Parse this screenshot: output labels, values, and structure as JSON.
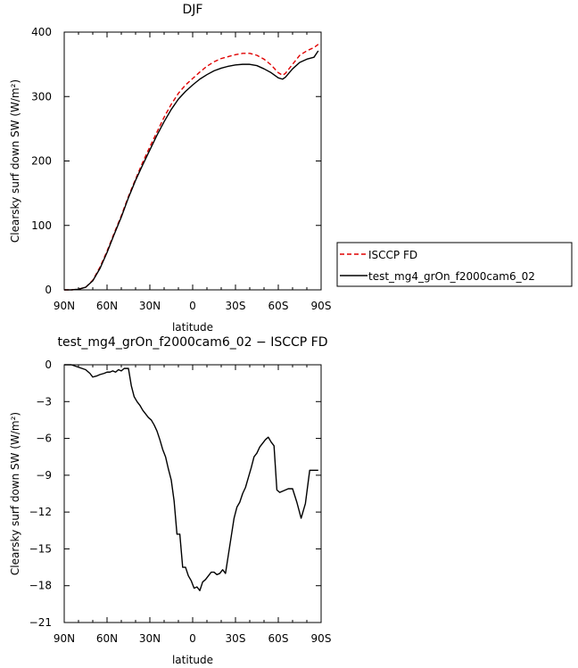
{
  "chart_data": [
    {
      "type": "line",
      "title": "DJF",
      "xlabel": "latitude",
      "ylabel": "Clearsky surf down SW (W/m²)",
      "xlim": [
        90,
        -90
      ],
      "ylim": [
        0,
        400
      ],
      "x_tick_labels": [
        "90N",
        "60N",
        "30N",
        "0",
        "30S",
        "60S",
        "90S"
      ],
      "y_tick_labels": [
        "0",
        "100",
        "200",
        "300",
        "400"
      ],
      "legend_position": "right",
      "series": [
        {
          "name": "ISCCP FD",
          "color": "#e00000",
          "dash": "dashed",
          "x": [
            90,
            85,
            80,
            75,
            70,
            65,
            60,
            55,
            50,
            45,
            40,
            35,
            30,
            25,
            20,
            15,
            10,
            5,
            0,
            -5,
            -10,
            -15,
            -20,
            -25,
            -30,
            -35,
            -40,
            -45,
            -50,
            -55,
            -60,
            -63,
            -65,
            -70,
            -75,
            -80,
            -85,
            -88
          ],
          "y": [
            0,
            0,
            1,
            4,
            15,
            35,
            60,
            88,
            115,
            145,
            172,
            198,
            222,
            245,
            268,
            288,
            305,
            318,
            328,
            338,
            347,
            354,
            359,
            362,
            365,
            367,
            367,
            364,
            358,
            349,
            337,
            333,
            336,
            350,
            364,
            371,
            376,
            381
          ]
        },
        {
          "name": "test_mg4_grOn_f2000cam6_02",
          "color": "#000000",
          "dash": "solid",
          "x": [
            90,
            85,
            80,
            75,
            70,
            65,
            60,
            55,
            50,
            45,
            40,
            35,
            30,
            25,
            20,
            15,
            10,
            5,
            0,
            -5,
            -10,
            -15,
            -20,
            -25,
            -30,
            -35,
            -40,
            -45,
            -50,
            -55,
            -60,
            -63,
            -65,
            -70,
            -75,
            -80,
            -85,
            -88
          ],
          "y": [
            0,
            0,
            1,
            4,
            14,
            33,
            58,
            86,
            113,
            143,
            170,
            194,
            217,
            240,
            261,
            280,
            296,
            308,
            318,
            327,
            334,
            340,
            344,
            347,
            349,
            350,
            350,
            348,
            343,
            337,
            329,
            327,
            330,
            343,
            353,
            358,
            361,
            371
          ]
        }
      ]
    },
    {
      "type": "line",
      "title": "test_mg4_grOn_f2000cam6_02 − ISCCP FD",
      "xlabel": "latitude",
      "ylabel": "Clearsky surf down SW (W/m²)",
      "xlim": [
        90,
        -90
      ],
      "ylim": [
        -21,
        0
      ],
      "x_tick_labels": [
        "90N",
        "60N",
        "30N",
        "0",
        "30S",
        "60S",
        "90S"
      ],
      "y_tick_labels": [
        "0",
        "−3",
        "−6",
        "−9",
        "−12",
        "−15",
        "−18",
        "−21"
      ],
      "series": [
        {
          "name": "",
          "color": "#000000",
          "dash": "solid",
          "x": [
            90,
            85,
            80,
            75,
            72,
            70,
            67,
            65,
            62,
            60,
            58,
            56,
            54,
            52,
            50,
            48,
            46,
            45,
            43,
            41,
            39,
            37,
            35,
            33,
            31,
            29,
            27,
            25,
            23,
            21,
            19,
            17,
            15,
            13,
            11,
            9,
            7,
            5,
            3,
            1,
            0,
            -1,
            -3,
            -5,
            -7,
            -9,
            -11,
            -13,
            -15,
            -17,
            -19,
            -21,
            -23,
            -25,
            -27,
            -29,
            -31,
            -33,
            -35,
            -37,
            -39,
            -41,
            -43,
            -45,
            -47,
            -49,
            -51,
            -53,
            -55,
            -57,
            -59,
            -61,
            -63,
            -65,
            -67,
            -70,
            -73,
            -76,
            -79,
            -82,
            -85,
            -88
          ],
          "y": [
            0,
            0,
            -0.2,
            -0.4,
            -0.7,
            -1.0,
            -0.9,
            -0.8,
            -0.7,
            -0.6,
            -0.6,
            -0.5,
            -0.6,
            -0.4,
            -0.5,
            -0.3,
            -0.3,
            -0.3,
            -1.7,
            -2.6,
            -3.0,
            -3.3,
            -3.7,
            -4.0,
            -4.3,
            -4.5,
            -4.9,
            -5.4,
            -6.1,
            -6.9,
            -7.5,
            -8.5,
            -9.4,
            -11.1,
            -13.8,
            -13.8,
            -16.5,
            -16.5,
            -17.2,
            -17.6,
            -17.9,
            -18.2,
            -18.1,
            -18.4,
            -17.7,
            -17.5,
            -17.2,
            -16.9,
            -16.9,
            -17.1,
            -17.0,
            -16.7,
            -17.0,
            -15.5,
            -14.0,
            -12.5,
            -11.6,
            -11.2,
            -10.5,
            -10.0,
            -9.2,
            -8.4,
            -7.5,
            -7.2,
            -6.7,
            -6.4,
            -6.1,
            -5.9,
            -6.3,
            -6.6,
            -10.2,
            -10.4,
            -10.3,
            -10.2,
            -10.1,
            -10.1,
            -11.2,
            -12.5,
            -11.3,
            -8.6,
            -8.6,
            -8.6
          ]
        }
      ]
    }
  ]
}
